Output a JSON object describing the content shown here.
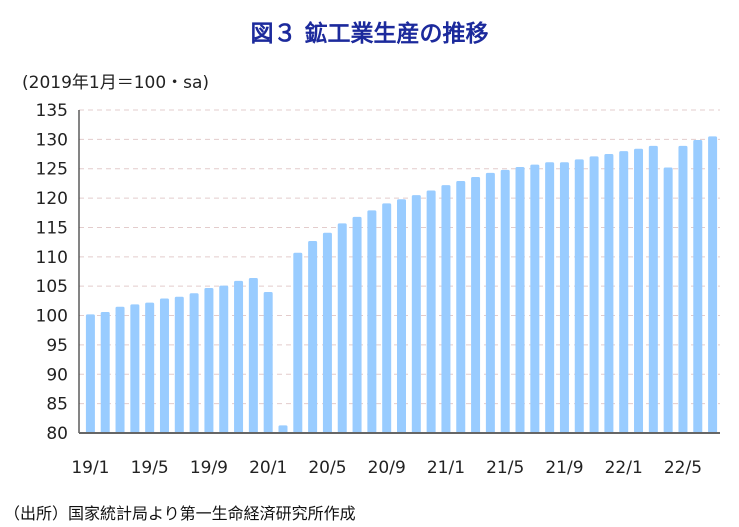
{
  "chart_data": {
    "type": "bar",
    "title": "図３ 鉱工業生産の推移",
    "ylabel": "(2019年1月＝100・sa)",
    "xlabel": "",
    "ylim": [
      80,
      135
    ],
    "yticks": [
      80,
      85,
      90,
      95,
      100,
      105,
      110,
      115,
      120,
      125,
      130,
      135
    ],
    "grid": true,
    "x_tick_labels": [
      {
        "index": 0,
        "label": "19/1"
      },
      {
        "index": 4,
        "label": "19/5"
      },
      {
        "index": 8,
        "label": "19/9"
      },
      {
        "index": 12,
        "label": "20/1"
      },
      {
        "index": 16,
        "label": "20/5"
      },
      {
        "index": 20,
        "label": "20/9"
      },
      {
        "index": 24,
        "label": "21/1"
      },
      {
        "index": 28,
        "label": "21/5"
      },
      {
        "index": 32,
        "label": "21/9"
      },
      {
        "index": 36,
        "label": "22/1"
      },
      {
        "index": 40,
        "label": "22/5"
      }
    ],
    "categories": [
      "19/1",
      "19/2",
      "19/3",
      "19/4",
      "19/5",
      "19/6",
      "19/7",
      "19/8",
      "19/9",
      "19/10",
      "19/11",
      "19/12",
      "20/1",
      "20/2",
      "20/3",
      "20/4",
      "20/5",
      "20/6",
      "20/7",
      "20/8",
      "20/9",
      "20/10",
      "20/11",
      "20/12",
      "21/1",
      "21/2",
      "21/3",
      "21/4",
      "21/5",
      "21/6",
      "21/7",
      "21/8",
      "21/9",
      "21/10",
      "21/11",
      "21/12",
      "22/1",
      "22/2",
      "22/3",
      "22/4",
      "22/5",
      "22/6",
      "22/7"
    ],
    "values": [
      100.2,
      100.6,
      101.5,
      101.9,
      102.2,
      102.9,
      103.2,
      103.8,
      104.7,
      105.1,
      105.9,
      106.4,
      104.0,
      81.3,
      110.7,
      112.7,
      114.1,
      115.7,
      116.8,
      117.9,
      119.1,
      119.8,
      120.5,
      121.3,
      122.2,
      122.9,
      123.6,
      124.3,
      124.8,
      125.3,
      125.7,
      126.1,
      126.1,
      126.6,
      127.1,
      127.5,
      128.0,
      128.4,
      128.9,
      125.2,
      128.9,
      129.9,
      130.5
    ],
    "bar_color": "#99ccff"
  },
  "source": "（出所）国家統計局より第一生命経済研究所作成"
}
